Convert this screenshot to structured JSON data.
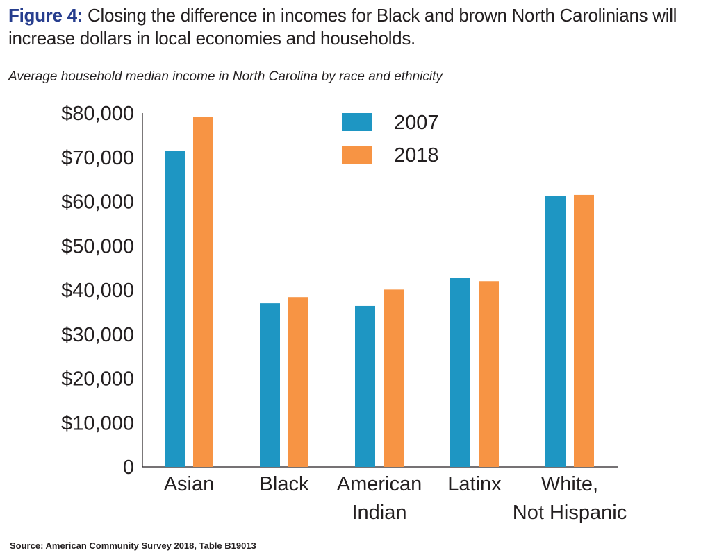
{
  "title": {
    "label": "Figure 4:",
    "text": " Closing the difference in incomes for Black and brown North Carolinians will increase dollars in local economies and households."
  },
  "source": "Source: American Community Survey 2018, Table B19013",
  "colors": {
    "2007": "#1e96c3",
    "2018": "#f79444",
    "title_accent": "#263d8e"
  },
  "chart_data": {
    "type": "bar",
    "title": "Average household median income in North Carolina by race and ethnicity",
    "xlabel": "",
    "ylabel": "",
    "ylim": [
      0,
      80000
    ],
    "yticks": [
      0,
      10000,
      20000,
      30000,
      40000,
      50000,
      60000,
      70000,
      80000
    ],
    "ytick_labels": [
      "0",
      "$10,000",
      "$20,000",
      "$30,000",
      "$40,000",
      "$50,000",
      "$60,000",
      "$70,000",
      "$80,000"
    ],
    "categories": [
      [
        "Asian"
      ],
      [
        "Black"
      ],
      [
        "American",
        "Indian"
      ],
      [
        "Latinx"
      ],
      [
        "White,",
        "Not Hispanic"
      ]
    ],
    "series": [
      {
        "name": "2007",
        "color": "#1e96c3",
        "values": [
          71500,
          37000,
          36400,
          42800,
          61300
        ]
      },
      {
        "name": "2018",
        "color": "#f79444",
        "values": [
          79100,
          38400,
          40100,
          42000,
          61500
        ]
      }
    ],
    "legend": "top-center",
    "grid": false
  }
}
